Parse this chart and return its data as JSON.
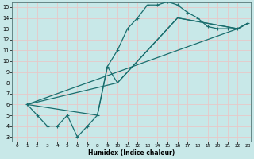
{
  "xlabel": "Humidex (Indice chaleur)",
  "xlim": [
    0,
    23
  ],
  "ylim": [
    3,
    15
  ],
  "xticks": [
    0,
    1,
    2,
    3,
    4,
    5,
    6,
    7,
    8,
    9,
    10,
    11,
    12,
    13,
    14,
    15,
    16,
    17,
    18,
    19,
    20,
    21,
    22,
    23
  ],
  "yticks": [
    3,
    4,
    5,
    6,
    7,
    8,
    9,
    10,
    11,
    12,
    13,
    14,
    15
  ],
  "bg_color": "#c8e8e8",
  "line_color": "#1a6e6e",
  "grid_color": "#e8c8c8",
  "main_x": [
    1,
    2,
    3,
    4,
    5,
    6,
    7,
    8,
    9,
    10,
    11,
    12,
    13,
    14,
    15,
    16,
    17,
    18,
    19,
    20,
    21,
    22,
    23
  ],
  "main_y": [
    6,
    5,
    4,
    4,
    5,
    3,
    4,
    5,
    9.5,
    11,
    13,
    14,
    15.2,
    15.2,
    15.5,
    15.2,
    14.5,
    14,
    13.2,
    13,
    13,
    13,
    13.5
  ],
  "line2_x": [
    1,
    22,
    23
  ],
  "line2_y": [
    6,
    13,
    13.5
  ],
  "line3_x": [
    1,
    10,
    16,
    22,
    23
  ],
  "line3_y": [
    6,
    8,
    14,
    13,
    13.5
  ],
  "line4_x": [
    1,
    8,
    9,
    10,
    16,
    22,
    23
  ],
  "line4_y": [
    6,
    5,
    9.5,
    8,
    14,
    13,
    13.5
  ]
}
